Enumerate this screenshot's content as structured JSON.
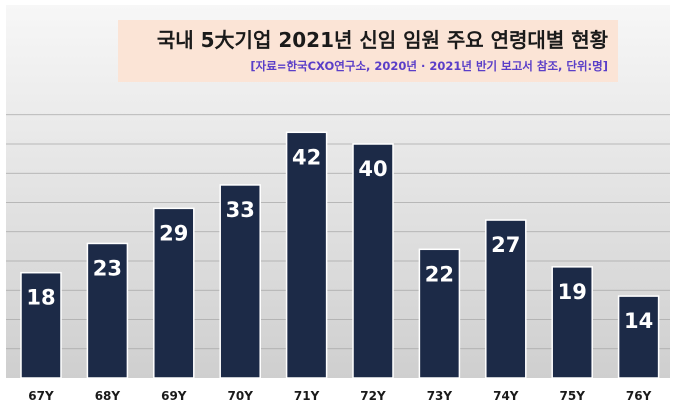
{
  "chart_data": {
    "type": "bar",
    "title": "국내 5大기업 2021년 신임 임원 주요 연령대별 현황",
    "subtitle": "[자료=한국CXO연구소, 2020년 · 2021년 반기 보고서 참조, 단위:명]",
    "categories": [
      "67Y",
      "68Y",
      "69Y",
      "70Y",
      "71Y",
      "72Y",
      "73Y",
      "74Y",
      "75Y",
      "76Y"
    ],
    "values": [
      18,
      23,
      29,
      33,
      42,
      40,
      22,
      27,
      19,
      14
    ],
    "ylim": [
      0,
      48
    ],
    "grid": true,
    "bar_color": "#1c2a47",
    "background_color": "#ffffff",
    "title_box_color": "#fbe4d6",
    "subtitle_color": "#5a3ec8"
  }
}
